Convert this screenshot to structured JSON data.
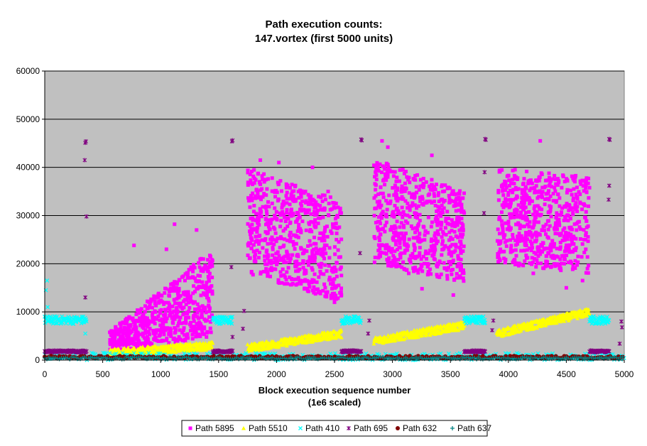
{
  "chart_data": {
    "type": "scatter",
    "title_lines": [
      "Path execution counts:",
      "147.vortex (first 5000 units)"
    ],
    "xlabel_lines": [
      "Block execution sequence number",
      "(1e6 scaled)"
    ],
    "ylabel": "",
    "xlim": [
      0,
      5000
    ],
    "ylim": [
      0,
      60000
    ],
    "x_ticks": [
      0,
      500,
      1000,
      1500,
      2000,
      2500,
      3000,
      3500,
      4000,
      4500,
      5000
    ],
    "y_ticks": [
      0,
      10000,
      20000,
      30000,
      40000,
      50000,
      60000
    ],
    "grid": "horizontal",
    "plot_background": "#c0c0c0",
    "legend_position": "bottom",
    "series": [
      {
        "name": "Path 5895",
        "color": "#ff00ff",
        "marker": "square",
        "clusters": [
          {
            "x_range": [
              560,
              1450
            ],
            "y_start_range": [
              1000,
              6000
            ],
            "y_end_range": [
              5000,
              23000
            ],
            "count": 650
          },
          {
            "x_range": [
              1750,
              2560
            ],
            "y_start_range": [
              18000,
              40000
            ],
            "y_end_range": [
              12000,
              33000
            ],
            "count": 650
          },
          {
            "x_range": [
              2840,
              3620
            ],
            "y_start_range": [
              20000,
              42000
            ],
            "y_end_range": [
              16000,
              35000
            ],
            "count": 650
          },
          {
            "x_range": [
              3900,
              4700
            ],
            "y_start_range": [
              20000,
              40000
            ],
            "y_end_range": [
              18000,
              38000
            ],
            "count": 650
          }
        ],
        "outliers": [
          [
            770,
            23800
          ],
          [
            1050,
            23000
          ],
          [
            1120,
            28200
          ],
          [
            1310,
            27000
          ],
          [
            1860,
            41500
          ],
          [
            2020,
            41000
          ],
          [
            2310,
            40000
          ],
          [
            2445,
            35000
          ],
          [
            2500,
            12000
          ],
          [
            2910,
            45500
          ],
          [
            2960,
            44200
          ],
          [
            3140,
            18000
          ],
          [
            3255,
            14800
          ],
          [
            3340,
            42500
          ],
          [
            3525,
            13500
          ],
          [
            4215,
            18000
          ],
          [
            4275,
            45500
          ],
          [
            4500,
            15000
          ],
          [
            4640,
            16500
          ]
        ]
      },
      {
        "name": "Path 5510",
        "color": "#ffff00",
        "marker": "triangle",
        "segments": [
          {
            "x_range": [
              560,
              1450
            ],
            "y_range": [
              1500,
              3000
            ]
          },
          {
            "x_range": [
              1750,
              2560
            ],
            "y_range": [
              2500,
              5500
            ]
          },
          {
            "x_range": [
              2840,
              3620
            ],
            "y_range": [
              4000,
              7200
            ]
          },
          {
            "x_range": [
              3900,
              4700
            ],
            "y_range": [
              5500,
              10000
            ]
          }
        ]
      },
      {
        "name": "Path 410",
        "color": "#00ffff",
        "marker": "x",
        "bands": [
          {
            "x_range": [
              0,
              360
            ],
            "y": 8300
          },
          {
            "x_range": [
              1450,
              1620
            ],
            "y": 8300
          },
          {
            "x_range": [
              2560,
              2730
            ],
            "y": 8300
          },
          {
            "x_range": [
              3620,
              3800
            ],
            "y": 8300
          },
          {
            "x_range": [
              4700,
              4870
            ],
            "y": 8300
          }
        ],
        "low_band": {
          "x_range": [
            0,
            5000
          ],
          "y_range": [
            0,
            1500
          ]
        },
        "outliers": [
          [
            20,
            16500
          ],
          [
            10,
            14500
          ],
          [
            25,
            11000
          ],
          [
            350,
            5500
          ]
        ]
      },
      {
        "name": "Path 695",
        "color": "#800080",
        "marker": "star",
        "bands": [
          {
            "x_range": [
              0,
              360
            ],
            "y": 1800
          },
          {
            "x_range": [
              1450,
              1620
            ],
            "y": 1800
          },
          {
            "x_range": [
              2560,
              2730
            ],
            "y": 1800
          },
          {
            "x_range": [
              3620,
              3800
            ],
            "y": 1800
          },
          {
            "x_range": [
              4700,
              4870
            ],
            "y": 1800
          }
        ],
        "outliers": [
          [
            355,
            45400
          ],
          [
            350,
            45100
          ],
          [
            345,
            41500
          ],
          [
            360,
            29800
          ],
          [
            350,
            13000
          ],
          [
            1620,
            45600
          ],
          [
            1615,
            45400
          ],
          [
            1610,
            19300
          ],
          [
            1620,
            4800
          ],
          [
            1720,
            10200
          ],
          [
            1710,
            6500
          ],
          [
            2730,
            45800
          ],
          [
            2735,
            45600
          ],
          [
            2720,
            22200
          ],
          [
            2800,
            8200
          ],
          [
            2790,
            5500
          ],
          [
            3800,
            45900
          ],
          [
            3805,
            45700
          ],
          [
            3795,
            39000
          ],
          [
            3790,
            30500
          ],
          [
            3870,
            8200
          ],
          [
            3860,
            6200
          ],
          [
            4870,
            45900
          ],
          [
            4875,
            45700
          ],
          [
            4870,
            36200
          ],
          [
            4865,
            33300
          ],
          [
            4975,
            8000
          ],
          [
            4980,
            6800
          ],
          [
            4960,
            3400
          ]
        ]
      },
      {
        "name": "Path 632",
        "color": "#800000",
        "marker": "circle",
        "band": {
          "x_range": [
            0,
            5000
          ],
          "y": 600
        }
      },
      {
        "name": "Path 637",
        "color": "#008080",
        "marker": "plus",
        "band": {
          "x_range": [
            0,
            5000
          ],
          "y": 400
        }
      }
    ]
  }
}
